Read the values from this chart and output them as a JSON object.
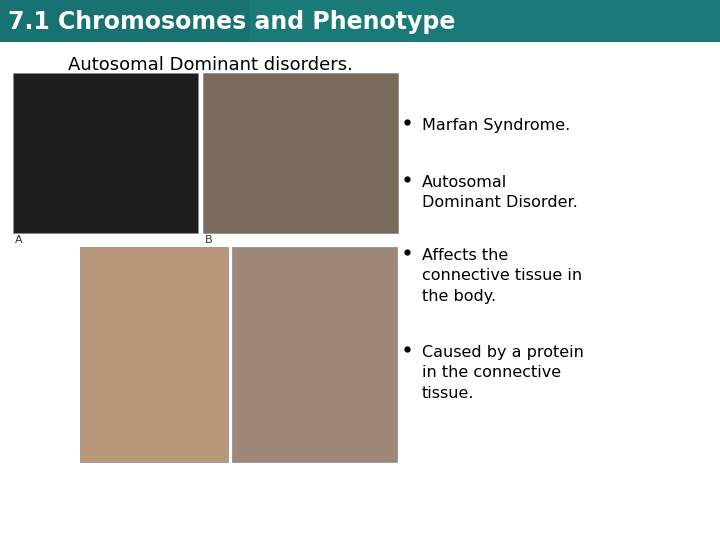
{
  "title": "7.1 Chromosomes and Phenotype",
  "subtitle": "Autosomal Dominant disorders.",
  "title_bg_color": "#1a7a7a",
  "title_text_color": "#ffffff",
  "body_bg_color": "#ffffff",
  "subtitle_color": "#000000",
  "bullet_points": [
    "Marfan Syndrome.",
    "Autosomal\nDominant Disorder.",
    "Affects the\nconnective tissue in\nthe body.",
    "Caused by a protein\nin the connective\ntissue."
  ],
  "bullet_color": "#000000",
  "bullet_fontsize": 11.5,
  "subtitle_fontsize": 13,
  "title_fontsize": 17,
  "title_bar_height": 42,
  "img_top_left_color": "#1e1e1e",
  "img_top_right_color": "#7a6a5a",
  "img_bot_left_color": "#b89878",
  "img_bot_right_color": "#a08878",
  "label_color": "#333333",
  "label_fontsize": 8
}
